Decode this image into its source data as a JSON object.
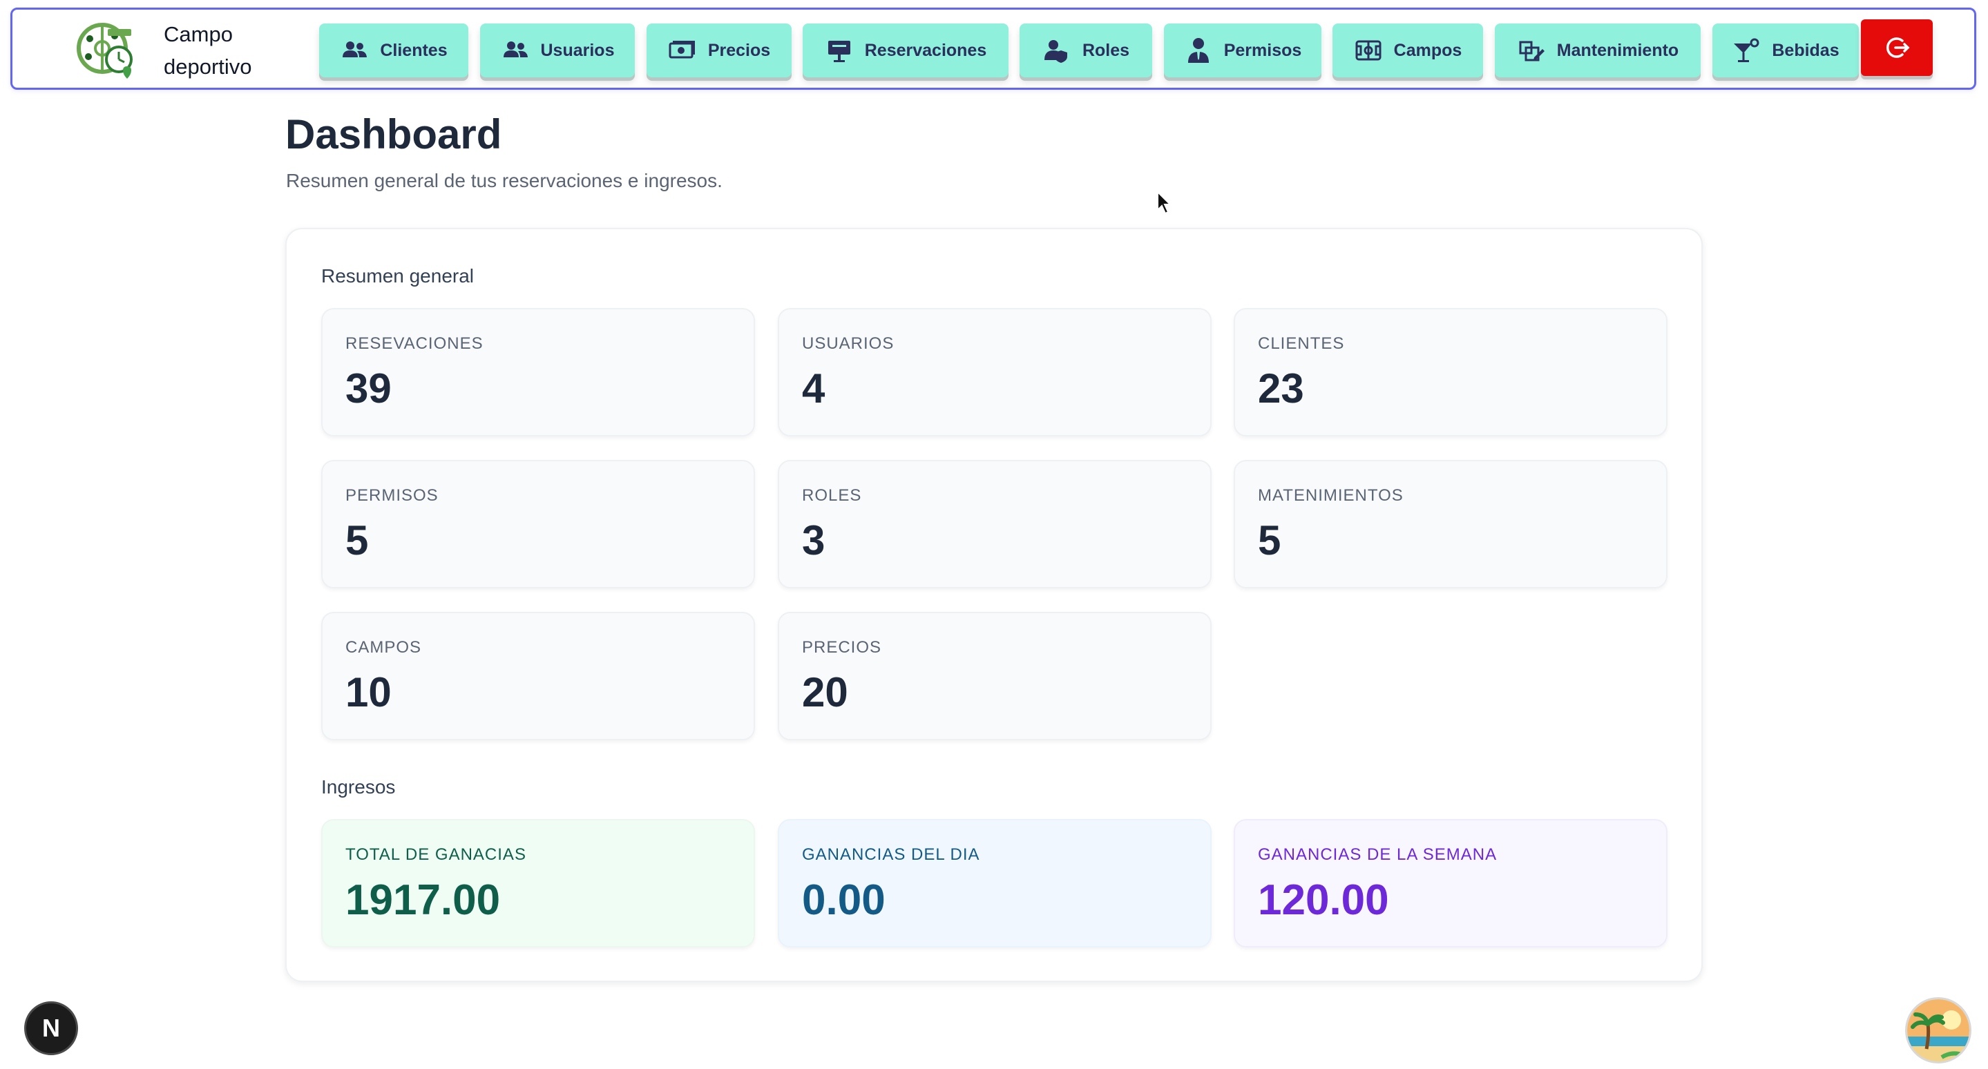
{
  "brand": {
    "name": "Campo deportivo",
    "logo_icon": "sports-field-clock-logo"
  },
  "nav": {
    "items": [
      {
        "label": "Clientes",
        "icon": "users-icon"
      },
      {
        "label": "Usuarios",
        "icon": "users-icon"
      },
      {
        "label": "Precios",
        "icon": "money-icon"
      },
      {
        "label": "Reservaciones",
        "icon": "presentation-board-icon"
      },
      {
        "label": "Roles",
        "icon": "user-shield-icon"
      },
      {
        "label": "Permisos",
        "icon": "user-tie-icon"
      },
      {
        "label": "Campos",
        "icon": "soccer-field-icon"
      },
      {
        "label": "Mantenimiento",
        "icon": "edit-box-icon"
      },
      {
        "label": "Bebidas",
        "icon": "cocktail-icon"
      }
    ],
    "logout_icon": "logout-icon",
    "colors": {
      "button": "#8ff0dc",
      "logout": "#e60b0b",
      "border": "#6366f1"
    }
  },
  "page": {
    "title": "Dashboard",
    "subtitle": "Resumen general de tus reservaciones e ingresos."
  },
  "summary": {
    "title": "Resumen general",
    "stats": [
      {
        "label": "RESEVACIONES",
        "value": "39"
      },
      {
        "label": "USUARIOS",
        "value": "4"
      },
      {
        "label": "CLIENTES",
        "value": "23"
      },
      {
        "label": "PERMISOS",
        "value": "5"
      },
      {
        "label": "ROLES",
        "value": "3"
      },
      {
        "label": "MATENIMIENTOS",
        "value": "5"
      },
      {
        "label": "CAMPOS",
        "value": "10"
      },
      {
        "label": "PRECIOS",
        "value": "20"
      }
    ]
  },
  "income": {
    "title": "Ingresos",
    "cards": [
      {
        "label": "TOTAL DE GANACIAS",
        "value": "1917.00",
        "color": "#0f5e4a"
      },
      {
        "label": "GANANCIAS DEL DIA",
        "value": "0.00",
        "color": "#135b86"
      },
      {
        "label": "GANANCIAS DE LA SEMANA",
        "value": "120.00",
        "color": "#6d28d9"
      }
    ]
  },
  "floating": {
    "next_badge": "N",
    "avatar_icon": "beach-avatar-icon"
  }
}
